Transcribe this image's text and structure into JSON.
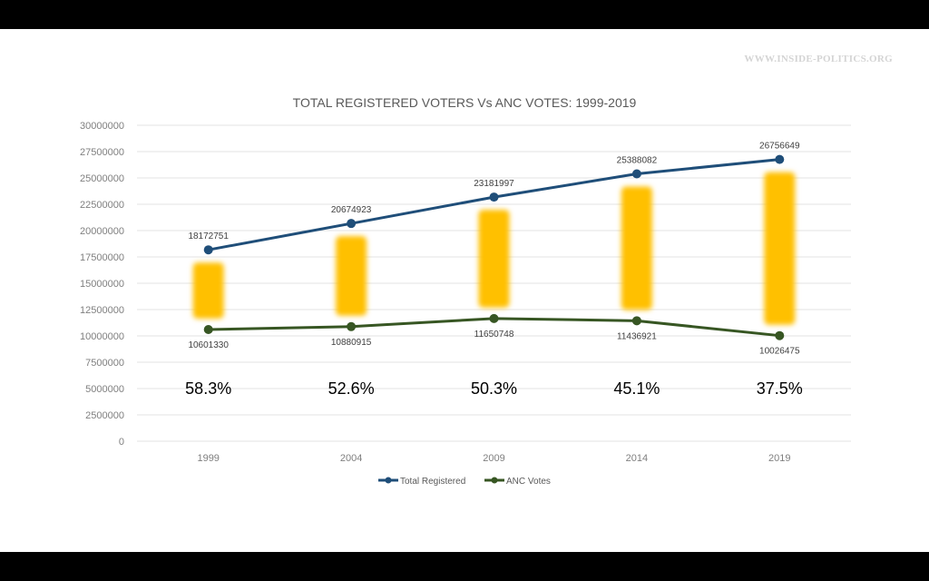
{
  "watermark": "WWW.INSIDE-POLITICS.ORG",
  "chart_data": {
    "type": "line",
    "title": "TOTAL REGISTERED VOTERS Vs ANC VOTES: 1999-2019",
    "xlabel": "",
    "ylabel": "",
    "categories": [
      "1999",
      "2004",
      "2009",
      "2014",
      "2019"
    ],
    "ylim": [
      0,
      30000000
    ],
    "yticks": [
      0,
      2500000,
      5000000,
      7500000,
      10000000,
      12500000,
      15000000,
      17500000,
      20000000,
      22500000,
      25000000,
      27500000,
      30000000
    ],
    "grid": true,
    "legend_position": "bottom",
    "series": [
      {
        "name": "Total Registered",
        "color": "#1f4e79",
        "values": [
          18172751,
          20674923,
          23181997,
          25388082,
          26756649
        ],
        "labels_position": "above"
      },
      {
        "name": "ANC Votes",
        "color": "#375623",
        "values": [
          10601330,
          10880915,
          11650748,
          11436921,
          10026475
        ],
        "labels_position": "below"
      }
    ],
    "highlight_bars": {
      "color": "#ffc000",
      "description": "gap between Total Registered and ANC Votes"
    },
    "annotations": {
      "percentages": [
        "58.3%",
        "52.6%",
        "50.3%",
        "45.1%",
        "37.5%"
      ],
      "y_value": 5000000
    }
  }
}
